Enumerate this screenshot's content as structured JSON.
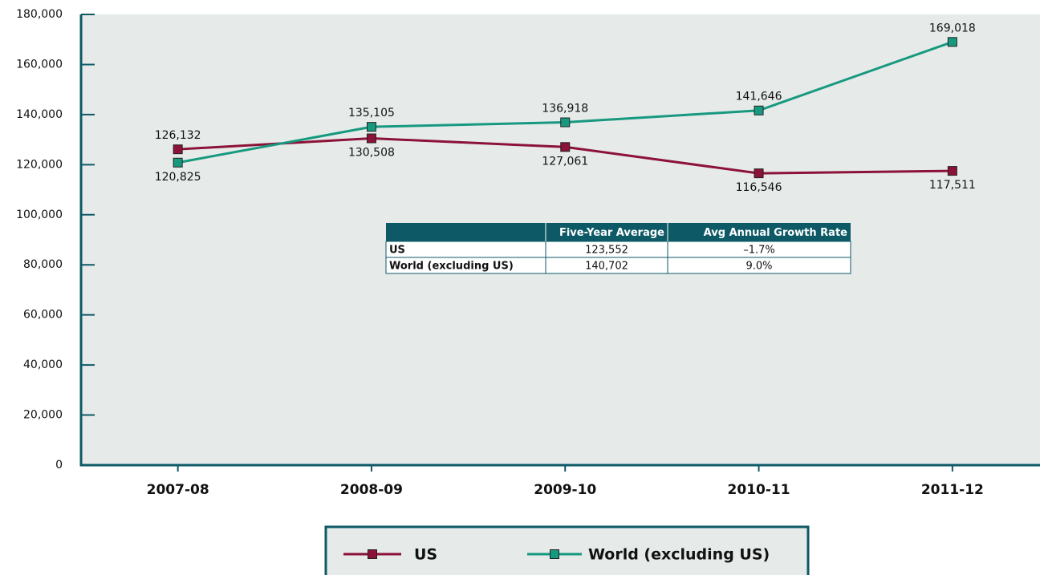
{
  "chart_data": {
    "type": "line",
    "categories": [
      "2007-08",
      "2008-09",
      "2009-10",
      "2010-11",
      "2011-12"
    ],
    "series": [
      {
        "name": "US",
        "color": "#8c1238",
        "values": [
          126132,
          130508,
          127061,
          116546,
          117511
        ],
        "value_labels": [
          "126,132",
          "130,508",
          "127,061",
          "116,546",
          "117,511"
        ]
      },
      {
        "name": "World (excluding US)",
        "color": "#17997f",
        "values": [
          120825,
          135105,
          136918,
          141646,
          169018
        ],
        "value_labels": [
          "120,825",
          "135,105",
          "136,918",
          "141,646",
          "169,018"
        ]
      }
    ],
    "ylim": [
      0,
      180000
    ],
    "yticks": [
      0,
      {
        "value": 20000,
        "label": "20,000"
      },
      {
        "value": 40000,
        "label": "40,000"
      },
      {
        "value": 60000,
        "label": "60,000"
      },
      {
        "value": 80000,
        "label": "80,000"
      },
      {
        "value": 100000,
        "label": "100,000"
      },
      {
        "value": 120000,
        "label": "120,000"
      },
      {
        "value": 140000,
        "label": "140,000"
      },
      {
        "value": 160000,
        "label": "160,000"
      },
      {
        "value": 180000,
        "label": "180,000"
      }
    ],
    "table": {
      "columns": [
        "Five-Year Average",
        "Avg Annual Growth Rate"
      ],
      "rows": [
        [
          "US",
          "123,552",
          "–1.7%"
        ],
        [
          "World (excluding US)",
          "140,702",
          "9.0%"
        ]
      ]
    }
  }
}
